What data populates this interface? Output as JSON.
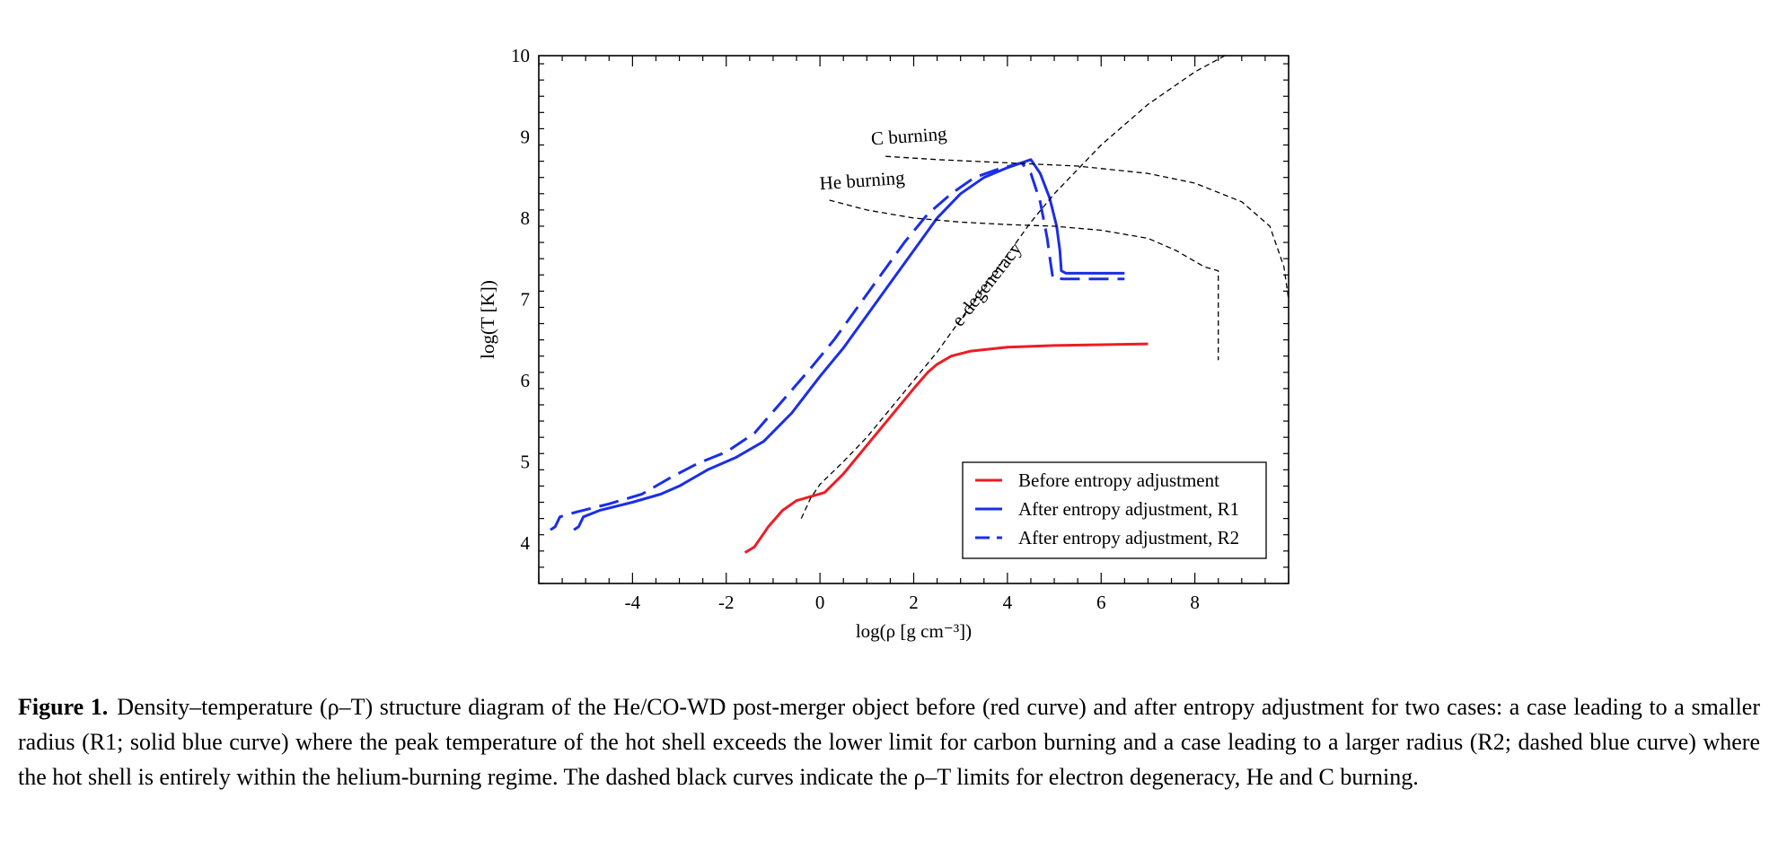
{
  "chart_data": {
    "type": "line",
    "xlabel": "log(ρ [g cm⁻³])",
    "ylabel": "log(T [K])",
    "xlim": [
      -6,
      10
    ],
    "ylim": [
      3.5,
      10
    ],
    "x_ticks": [
      -4,
      -2,
      0,
      2,
      4,
      6,
      8
    ],
    "y_ticks": [
      4,
      5,
      6,
      7,
      8,
      9,
      10
    ],
    "grid": false,
    "legend_position": "bottom-right",
    "series": [
      {
        "name": "Before entropy adjustment",
        "color": "#ee1c25",
        "style": "solid",
        "points": [
          [
            -1.6,
            3.88
          ],
          [
            -1.4,
            3.95
          ],
          [
            -1.1,
            4.2
          ],
          [
            -0.8,
            4.4
          ],
          [
            -0.5,
            4.52
          ],
          [
            -0.2,
            4.57
          ],
          [
            0.1,
            4.62
          ],
          [
            0.5,
            4.85
          ],
          [
            1.0,
            5.2
          ],
          [
            1.5,
            5.55
          ],
          [
            2.0,
            5.9
          ],
          [
            2.3,
            6.1
          ],
          [
            2.5,
            6.2
          ],
          [
            2.8,
            6.3
          ],
          [
            3.2,
            6.36
          ],
          [
            4.0,
            6.41
          ],
          [
            5.0,
            6.43
          ],
          [
            6.0,
            6.44
          ],
          [
            7.0,
            6.45
          ]
        ]
      },
      {
        "name": "After entropy adjustment, R1",
        "color": "#1a2ee8",
        "style": "solid",
        "points": [
          [
            -5.25,
            4.16
          ],
          [
            -5.15,
            4.2
          ],
          [
            -5.05,
            4.32
          ],
          [
            -4.7,
            4.4
          ],
          [
            -4.0,
            4.5
          ],
          [
            -3.4,
            4.6
          ],
          [
            -3.0,
            4.7
          ],
          [
            -2.4,
            4.9
          ],
          [
            -1.8,
            5.05
          ],
          [
            -1.2,
            5.25
          ],
          [
            -0.6,
            5.6
          ],
          [
            0.0,
            6.05
          ],
          [
            0.5,
            6.4
          ],
          [
            1.0,
            6.8
          ],
          [
            1.5,
            7.2
          ],
          [
            2.0,
            7.6
          ],
          [
            2.5,
            8.0
          ],
          [
            3.0,
            8.3
          ],
          [
            3.5,
            8.5
          ],
          [
            4.0,
            8.62
          ],
          [
            4.5,
            8.72
          ],
          [
            4.7,
            8.55
          ],
          [
            4.9,
            8.25
          ],
          [
            5.05,
            7.9
          ],
          [
            5.12,
            7.6
          ],
          [
            5.15,
            7.35
          ],
          [
            5.25,
            7.32
          ],
          [
            6.5,
            7.32
          ]
        ]
      },
      {
        "name": "After entropy adjustment, R2",
        "color": "#1a2ee8",
        "style": "dashed",
        "points": [
          [
            -5.75,
            4.16
          ],
          [
            -5.65,
            4.2
          ],
          [
            -5.55,
            4.32
          ],
          [
            -5.2,
            4.38
          ],
          [
            -4.5,
            4.48
          ],
          [
            -3.8,
            4.6
          ],
          [
            -3.2,
            4.8
          ],
          [
            -2.6,
            4.98
          ],
          [
            -2.0,
            5.12
          ],
          [
            -1.4,
            5.35
          ],
          [
            -0.8,
            5.75
          ],
          [
            -0.2,
            6.15
          ],
          [
            0.3,
            6.5
          ],
          [
            0.8,
            6.9
          ],
          [
            1.3,
            7.3
          ],
          [
            1.8,
            7.7
          ],
          [
            2.3,
            8.05
          ],
          [
            2.8,
            8.3
          ],
          [
            3.3,
            8.5
          ],
          [
            3.8,
            8.6
          ],
          [
            4.3,
            8.68
          ],
          [
            4.5,
            8.55
          ],
          [
            4.7,
            8.2
          ],
          [
            4.85,
            7.75
          ],
          [
            4.92,
            7.45
          ],
          [
            4.97,
            7.26
          ],
          [
            5.2,
            7.25
          ],
          [
            6.5,
            7.25
          ]
        ]
      },
      {
        "name": "",
        "color": "#000000",
        "style": "dashed-thin",
        "points": [
          [
            -0.4,
            4.3
          ],
          [
            -0.2,
            4.55
          ],
          [
            0.0,
            4.72
          ],
          [
            0.5,
            5.0
          ],
          [
            1.0,
            5.3
          ],
          [
            1.5,
            5.65
          ],
          [
            2.0,
            6.0
          ],
          [
            2.5,
            6.35
          ],
          [
            3.0,
            6.75
          ],
          [
            3.5,
            7.15
          ],
          [
            4.0,
            7.55
          ],
          [
            4.5,
            7.95
          ],
          [
            5.0,
            8.3
          ],
          [
            6.0,
            8.9
          ],
          [
            7.0,
            9.4
          ],
          [
            8.0,
            9.8
          ],
          [
            8.8,
            10.05
          ]
        ]
      },
      {
        "name": "",
        "color": "#000000",
        "style": "dashed-thin",
        "points": [
          [
            0.2,
            8.22
          ],
          [
            1.0,
            8.1
          ],
          [
            2.0,
            8.0
          ],
          [
            3.0,
            7.95
          ],
          [
            4.0,
            7.92
          ],
          [
            5.0,
            7.9
          ],
          [
            6.0,
            7.85
          ],
          [
            7.0,
            7.75
          ],
          [
            7.6,
            7.6
          ],
          [
            8.2,
            7.4
          ],
          [
            8.5,
            7.35
          ],
          [
            8.5,
            6.25
          ]
        ]
      },
      {
        "name": "",
        "color": "#000000",
        "style": "dashed-thin",
        "points": [
          [
            1.4,
            8.76
          ],
          [
            2.5,
            8.72
          ],
          [
            4.0,
            8.68
          ],
          [
            5.5,
            8.64
          ],
          [
            7.0,
            8.55
          ],
          [
            8.0,
            8.43
          ],
          [
            9.0,
            8.2
          ],
          [
            9.6,
            7.9
          ],
          [
            9.9,
            7.4
          ],
          [
            10.0,
            7.0
          ]
        ]
      }
    ],
    "annotations": [
      {
        "text": "C burning",
        "x": 1.1,
        "y": 8.9,
        "rotation": -4
      },
      {
        "text": "He burning",
        "x": 0.0,
        "y": 8.35,
        "rotation": -4
      },
      {
        "text": "e-degeneracy",
        "x": 3.0,
        "y": 6.65,
        "rotation": -52
      }
    ]
  },
  "caption": {
    "lead": "Figure 1.",
    "body": "Density–temperature (ρ–T) structure diagram of the He/CO-WD post-merger object before (red curve) and after entropy adjustment for two cases: a case leading to a smaller radius (R1; solid blue curve) where the peak temperature of the hot shell exceeds the lower limit for carbon burning and a case leading to a larger radius (R2; dashed blue curve) where the hot shell is entirely within the helium-burning regime. The dashed black curves indicate the ρ–T limits for electron degeneracy, He and C burning."
  }
}
